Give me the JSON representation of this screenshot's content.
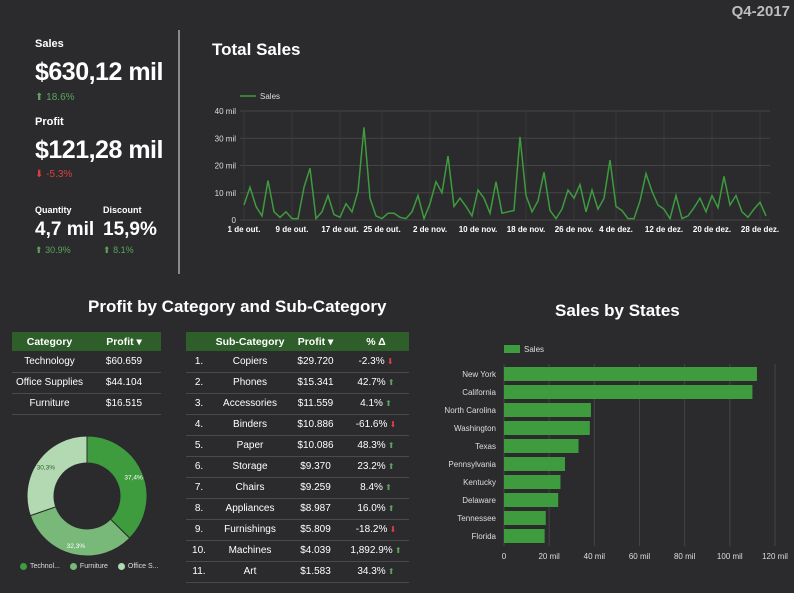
{
  "period": "Q4-2017",
  "kpis": {
    "sales": {
      "label": "Sales",
      "value": "$630,12 mil",
      "delta": "18.6%"
    },
    "profit": {
      "label": "Profit",
      "value": "$121,28 mil",
      "delta": "-5.3%"
    },
    "quantity": {
      "label": "Quantity",
      "value": "4,7 mil",
      "delta": "30.9%"
    },
    "discount": {
      "label": "Discount",
      "value": "15,9%",
      "delta": "8.1%"
    }
  },
  "titles": {
    "total_sales": "Total Sales",
    "profit_by_category": "Profit by Category and Sub-Category",
    "sales_by_states": "Sales by States"
  },
  "colors": {
    "primary_green": "#3e9b3e",
    "header_green": "#2e5e2a",
    "positive": "#5aa55a",
    "negative": "#d84040"
  },
  "category_table": {
    "headers": [
      "Category",
      "Profit ▾"
    ],
    "rows": [
      [
        "Technology",
        "$60.659"
      ],
      [
        "Office Supplies",
        "$44.104"
      ],
      [
        "Furniture",
        "$16.515"
      ]
    ]
  },
  "subcategory_table": {
    "headers": [
      "",
      "Sub-Category",
      "Profit ▾",
      "% Δ"
    ],
    "rows": [
      {
        "rank": "1.",
        "name": "Copiers",
        "profit": "$29.720",
        "delta": "-2.3%",
        "dir": "down"
      },
      {
        "rank": "2.",
        "name": "Phones",
        "profit": "$15.341",
        "delta": "42.7%",
        "dir": "up"
      },
      {
        "rank": "3.",
        "name": "Accessories",
        "profit": "$11.559",
        "delta": "4.1%",
        "dir": "up"
      },
      {
        "rank": "4.",
        "name": "Binders",
        "profit": "$10.886",
        "delta": "-61.6%",
        "dir": "down"
      },
      {
        "rank": "5.",
        "name": "Paper",
        "profit": "$10.086",
        "delta": "48.3%",
        "dir": "up"
      },
      {
        "rank": "6.",
        "name": "Storage",
        "profit": "$9.370",
        "delta": "23.2%",
        "dir": "up"
      },
      {
        "rank": "7.",
        "name": "Chairs",
        "profit": "$9.259",
        "delta": "8.4%",
        "dir": "up"
      },
      {
        "rank": "8.",
        "name": "Appliances",
        "profit": "$8.987",
        "delta": "16.0%",
        "dir": "up"
      },
      {
        "rank": "9.",
        "name": "Furnishings",
        "profit": "$5.809",
        "delta": "-18.2%",
        "dir": "down"
      },
      {
        "rank": "10.",
        "name": "Machines",
        "profit": "$4.039",
        "delta": "1,892.9%",
        "dir": "up"
      },
      {
        "rank": "11.",
        "name": "Art",
        "profit": "$1.583",
        "delta": "34.3%",
        "dir": "up"
      }
    ]
  },
  "chart_data": [
    {
      "type": "line",
      "title": "Total Sales",
      "legend": "Sales",
      "y_ticks": [
        "0",
        "10 mil",
        "20 mil",
        "30 mil",
        "40 mil"
      ],
      "ylim": [
        0,
        40000
      ],
      "x_ticks": [
        "1 de out.",
        "9 de out.",
        "17 de out.",
        "25 de out.",
        "2 de nov.",
        "10 de nov.",
        "18 de nov.",
        "26 de nov.",
        "4 de dez.",
        "12 de dez.",
        "20 de dez.",
        "28 de dez."
      ],
      "values": [
        5500,
        12000,
        5000,
        1500,
        14500,
        3000,
        1000,
        3000,
        500,
        500,
        12000,
        19000,
        500,
        3000,
        9000,
        2000,
        1000,
        6000,
        3000,
        10500,
        34000,
        8000,
        1500,
        500,
        2500,
        2500,
        1000,
        500,
        3000,
        9000,
        500,
        6000,
        14000,
        10000,
        23500,
        5000,
        8000,
        5000,
        1500,
        11000,
        8000,
        2500,
        14000,
        2500,
        3000,
        3500,
        30500,
        9000,
        3000,
        7000,
        17500,
        3500,
        500,
        4000,
        11000,
        8000,
        13000,
        3000,
        11000,
        4000,
        8000,
        22000,
        5000,
        3500,
        500,
        500,
        7000,
        17000,
        10500,
        5500,
        4000,
        500,
        9000,
        500,
        1500,
        4500,
        8000,
        3000,
        9000,
        4500,
        16000,
        5500,
        9000,
        3000,
        1000,
        4000,
        6500,
        1500
      ],
      "grid": true,
      "legend_position": "top-left"
    },
    {
      "type": "pie",
      "title": "",
      "labels": [
        "Technology",
        "Furniture",
        "Office Supplies"
      ],
      "legend_labels": [
        "Technol...",
        "Furniture",
        "Office S..."
      ],
      "values": [
        37.4,
        32.3,
        30.3
      ],
      "value_labels": [
        "37,4%",
        "32,3%",
        "30,3%"
      ],
      "colors": [
        "#3e9b3e",
        "#78b878",
        "#b3d9b3"
      ],
      "legend_position": "bottom"
    },
    {
      "type": "bar",
      "orientation": "horizontal",
      "title": "Sales by States",
      "legend": "Sales",
      "categories": [
        "New York",
        "California",
        "North Carolina",
        "Washington",
        "Texas",
        "Pennsylvania",
        "Kentucky",
        "Delaware",
        "Tennessee",
        "Florida"
      ],
      "values": [
        112000,
        110000,
        38500,
        38000,
        33000,
        27000,
        25000,
        24000,
        18500,
        18000
      ],
      "x_ticks": [
        "0",
        "20 mil",
        "40 mil",
        "60 mil",
        "80 mil",
        "100 mil",
        "120 mil"
      ],
      "xlim": [
        0,
        120000
      ],
      "grid": true,
      "legend_position": "top-left"
    }
  ]
}
